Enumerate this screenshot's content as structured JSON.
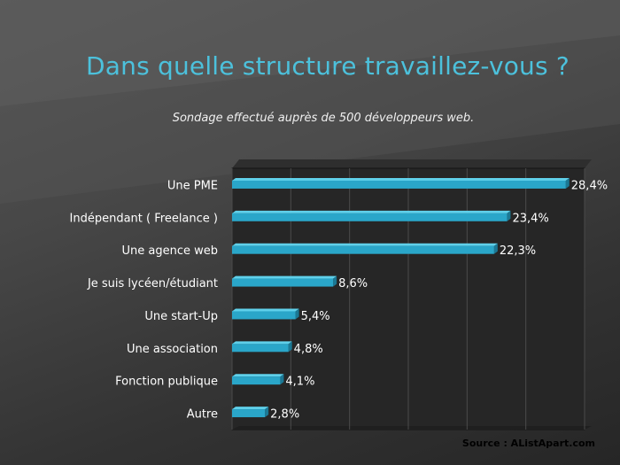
{
  "slide": {
    "title": "Dans quelle structure travaillez-vous ?",
    "subtitle": "Sondage effectué auprès de 500 développeurs web.",
    "source": "Source : AListApart.com"
  },
  "colors": {
    "bar": "#2aa6c9",
    "bar_dark": "#1b7894",
    "title": "#4cc1dc"
  },
  "chart_data": {
    "type": "bar",
    "orientation": "horizontal",
    "categories": [
      "Une PME",
      "Indépendant ( Freelance )",
      "Une agence web",
      "Je suis lycéen/étudiant",
      "Une start-Up",
      "Une association",
      "Fonction publique",
      "Autre"
    ],
    "values": [
      28.4,
      23.4,
      22.3,
      8.6,
      5.4,
      4.8,
      4.1,
      2.8
    ],
    "value_labels": [
      "28,4%",
      "23,4%",
      "22,3%",
      "8,6%",
      "5,4%",
      "4,8%",
      "4,1%",
      "2,8%"
    ],
    "xlim": [
      0,
      30
    ],
    "grid": true,
    "title": "Dans quelle structure travaillez-vous ?",
    "subtitle": "Sondage effectué auprès de 500 développeurs web."
  }
}
